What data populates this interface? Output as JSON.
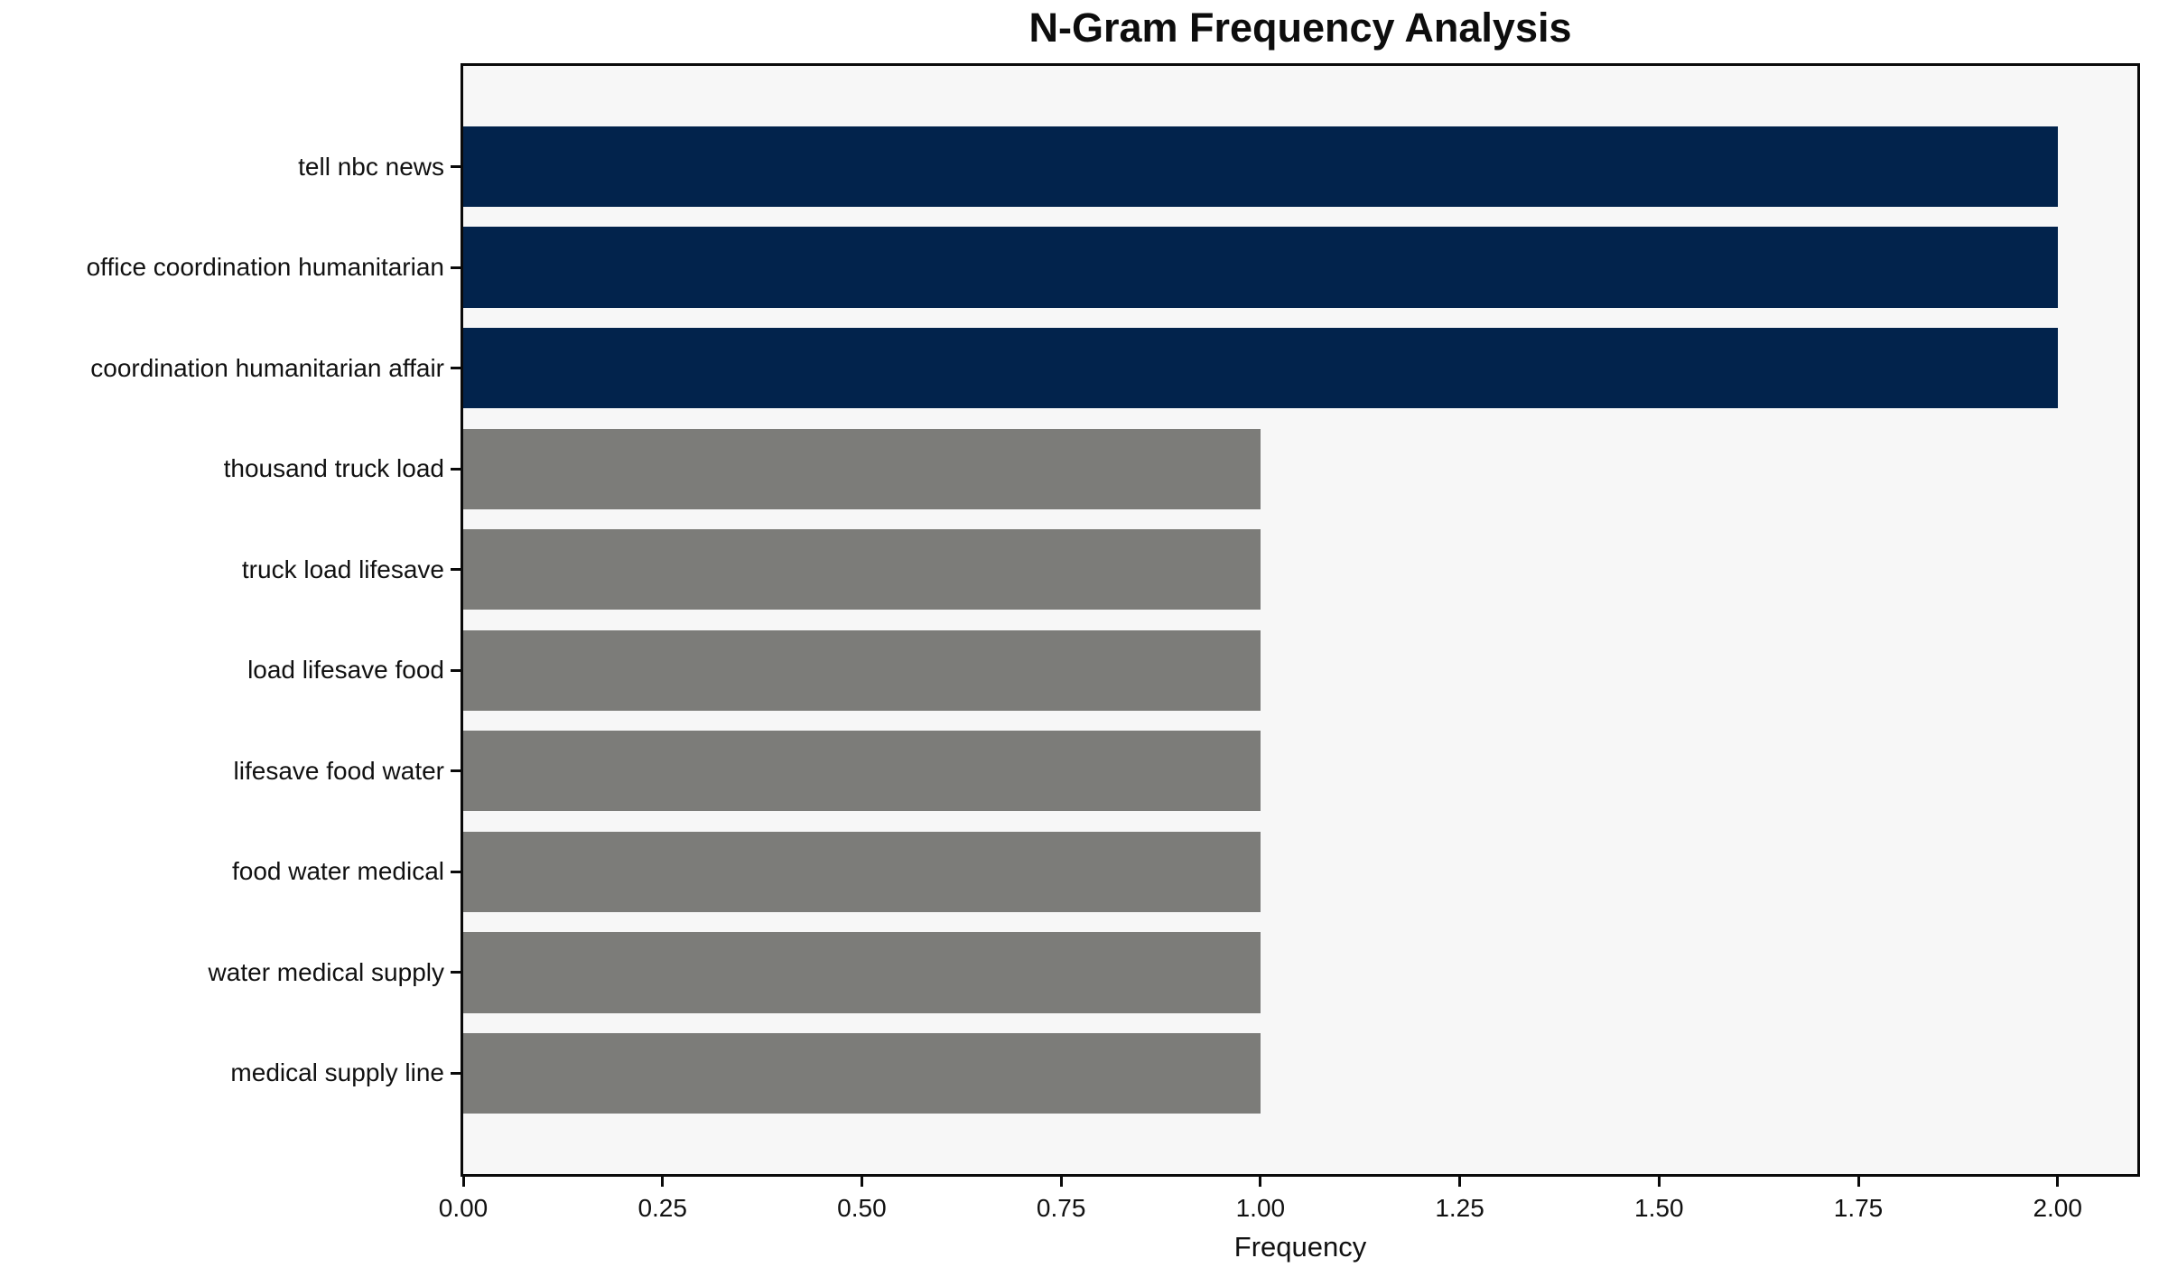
{
  "chart_data": {
    "type": "bar",
    "orientation": "horizontal",
    "title": "N-Gram Frequency Analysis",
    "xlabel": "Frequency",
    "ylabel": "",
    "categories": [
      "tell nbc news",
      "office coordination humanitarian",
      "coordination humanitarian affair",
      "thousand truck load",
      "truck load lifesave",
      "load lifesave food",
      "lifesave food water",
      "food water medical",
      "water medical supply",
      "medical supply line"
    ],
    "values": [
      2,
      2,
      2,
      1,
      1,
      1,
      1,
      1,
      1,
      1
    ],
    "bar_colors": [
      "#02234c",
      "#02234c",
      "#02234c",
      "#7c7c79",
      "#7c7c79",
      "#7c7c79",
      "#7c7c79",
      "#7c7c79",
      "#7c7c79",
      "#7c7c79"
    ],
    "xlim": [
      0,
      2.1
    ],
    "xticks": [
      0.0,
      0.25,
      0.5,
      0.75,
      1.0,
      1.25,
      1.5,
      1.75,
      2.0
    ],
    "xtick_labels": [
      "0.00",
      "0.25",
      "0.50",
      "0.75",
      "1.00",
      "1.25",
      "1.50",
      "1.75",
      "2.00"
    ],
    "grid": false,
    "legend": [],
    "colors": {
      "highlight": "#02234c",
      "default": "#7c7c79",
      "plot_background": "#f7f7f7",
      "figure_background": "#ffffff",
      "spine": "#0a0a0a",
      "text": "#111111"
    }
  }
}
